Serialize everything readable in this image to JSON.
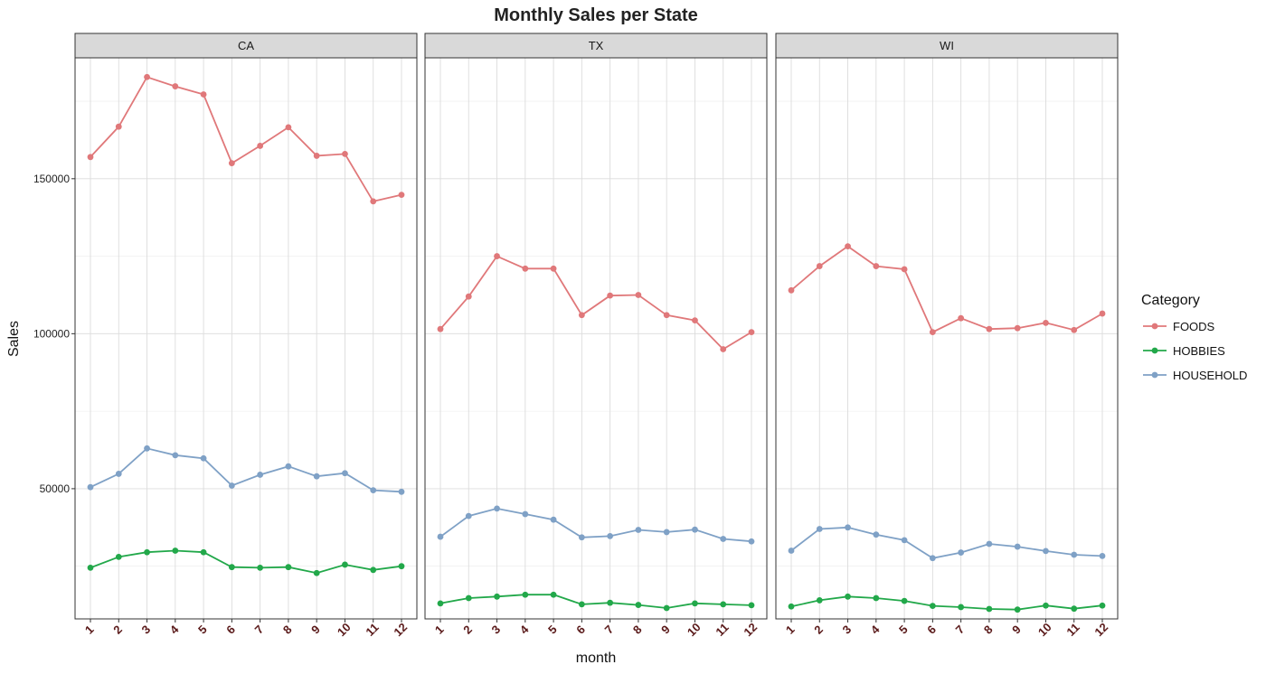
{
  "chart_data": {
    "type": "line",
    "title": "Monthly Sales per State",
    "xlabel": "month",
    "ylabel": "Sales",
    "categories": [
      "1",
      "2",
      "3",
      "4",
      "5",
      "6",
      "7",
      "8",
      "9",
      "10",
      "11",
      "12"
    ],
    "ylim": [
      8000,
      189000
    ],
    "yticks": [
      50000,
      100000,
      150000
    ],
    "ytick_labels": [
      "50000",
      "100000",
      "150000"
    ],
    "grid": true,
    "legend": {
      "title": "Category",
      "placement": "right"
    },
    "series_styles": [
      {
        "name": "FOODS",
        "color": "#E0787A"
      },
      {
        "name": "HOBBIES",
        "color": "#22A84A"
      },
      {
        "name": "HOUSEHOLD",
        "color": "#7FA1C6"
      }
    ],
    "panels": [
      {
        "label": "CA",
        "series": [
          {
            "name": "FOODS",
            "values": [
              157000,
              166800,
              182800,
              179800,
              177200,
              155000,
              160600,
              166600,
              157400,
              158000,
              142700,
              144800
            ]
          },
          {
            "name": "HOBBIES",
            "values": [
              24500,
              28000,
              29500,
              30000,
              29500,
              24700,
              24500,
              24700,
              22800,
              25500,
              23800,
              25000
            ]
          },
          {
            "name": "HOUSEHOLD",
            "values": [
              50500,
              54800,
              63000,
              60800,
              59800,
              51000,
              54500,
              57200,
              54000,
              55000,
              49500,
              49000
            ]
          }
        ]
      },
      {
        "label": "TX",
        "series": [
          {
            "name": "FOODS",
            "values": [
              101500,
              112000,
              125000,
              121000,
              121000,
              106000,
              112300,
              112500,
              106000,
              104300,
              95000,
              100500
            ]
          },
          {
            "name": "HOBBIES",
            "values": [
              13000,
              14700,
              15200,
              15800,
              15800,
              12700,
              13200,
              12500,
              11500,
              13000,
              12700,
              12400
            ]
          },
          {
            "name": "HOUSEHOLD",
            "values": [
              34500,
              41200,
              43600,
              41800,
              40000,
              34300,
              34700,
              36700,
              36000,
              36800,
              33800,
              33000
            ]
          }
        ]
      },
      {
        "label": "WI",
        "series": [
          {
            "name": "FOODS",
            "values": [
              114000,
              121800,
              128200,
              121800,
              120800,
              100500,
              105000,
              101500,
              101800,
              103500,
              101200,
              106500
            ]
          },
          {
            "name": "HOBBIES",
            "values": [
              12000,
              14000,
              15200,
              14700,
              13800,
              12200,
              11800,
              11200,
              11000,
              12300,
              11300,
              12300
            ]
          },
          {
            "name": "HOUSEHOLD",
            "values": [
              30000,
              37000,
              37500,
              35200,
              33400,
              27600,
              29400,
              32200,
              31300,
              29900,
              28700,
              28300
            ]
          }
        ]
      }
    ]
  }
}
